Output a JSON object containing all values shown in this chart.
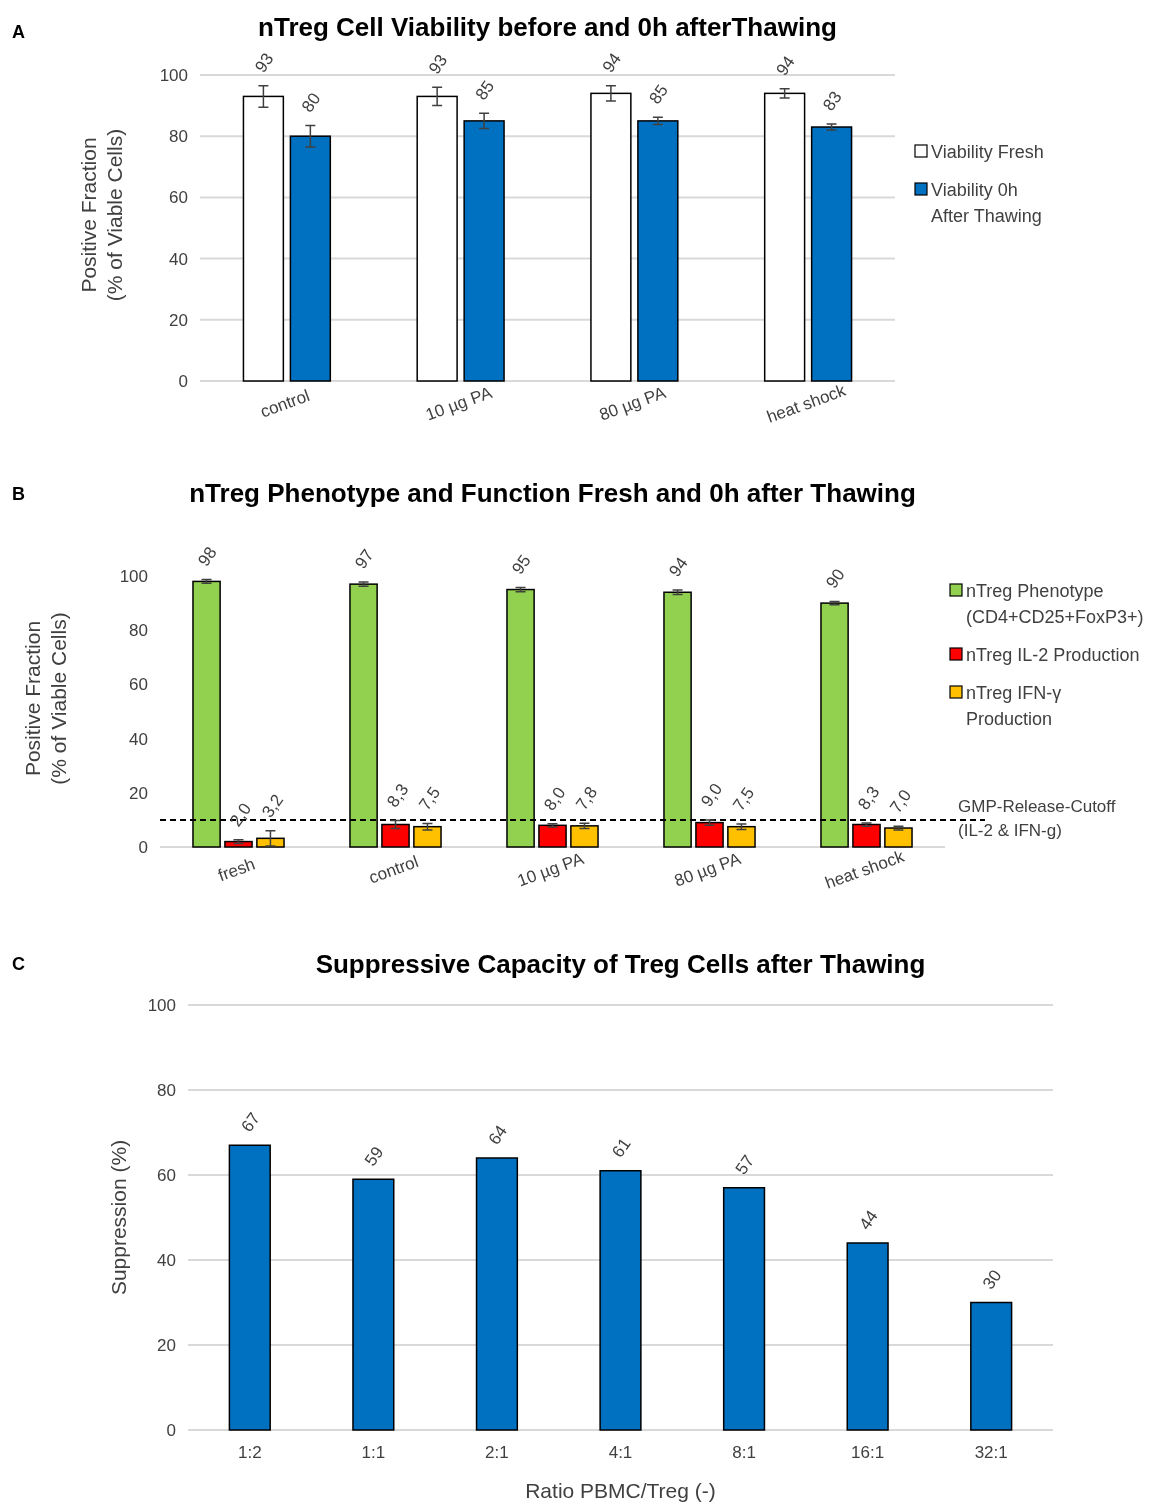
{
  "chart_data": [
    {
      "type": "bar",
      "title": "nTreg Cell Viability before and 0h afterThawing",
      "ylabel": "Positive Fraction\n(% of Viable Cells)",
      "annotations": [
        "A"
      ],
      "categories": [
        "control",
        "10 µg PA",
        "80 µg PA",
        "heat shock"
      ],
      "series": [
        {
          "name": "Viability Fresh",
          "color": "#ffffff",
          "values": [
            93,
            93,
            94,
            94
          ],
          "errors": [
            3.5,
            3,
            2.5,
            1.5
          ]
        },
        {
          "name": "Viability 0h\nAfter Thawing",
          "color": "#0070c0",
          "values": [
            80,
            85,
            85,
            83
          ],
          "errors": [
            3.5,
            2.5,
            1.2,
            1
          ]
        }
      ],
      "ylim": [
        0,
        100
      ],
      "yticks": [
        0,
        20,
        40,
        60,
        80,
        100
      ],
      "grid": "y",
      "legend": "right",
      "data_labels": true
    },
    {
      "type": "bar",
      "title": "nTreg Phenotype and Function Fresh and 0h after Thawing",
      "ylabel": "Positive Fraction\n(% of Viable Cells)",
      "annotations": [
        "B"
      ],
      "categories": [
        "fresh",
        "control",
        "10 µg PA",
        "80 µg PA",
        "heat shock"
      ],
      "series": [
        {
          "name": "nTreg Phenotype\n(CD4+CD25+FoxP3+)",
          "color": "#92d050",
          "values": [
            98,
            97,
            95,
            94,
            90
          ],
          "errors": [
            0.7,
            0.8,
            0.8,
            0.8,
            0.6
          ],
          "value_labels": [
            "98",
            "97",
            "95",
            "94",
            "90"
          ]
        },
        {
          "name": "nTreg IL-2 Production",
          "color": "#ff0000",
          "values": [
            2.0,
            8.3,
            8.0,
            9.0,
            8.3
          ],
          "errors": [
            0.7,
            1.5,
            0.6,
            1,
            0.6
          ],
          "value_labels": [
            "2,0",
            "8,3",
            "8,0",
            "9,0",
            "8,3"
          ]
        },
        {
          "name": "nTreg IFN-γ\nProduction",
          "color": "#ffc000",
          "values": [
            3.2,
            7.5,
            7.8,
            7.5,
            7.0
          ],
          "errors": [
            2.8,
            1.2,
            1,
            1,
            0.7
          ],
          "value_labels": [
            "3,2",
            "7,5",
            "7,8",
            "7,5",
            "7,0"
          ]
        }
      ],
      "ref_lines": [
        {
          "axis": "y",
          "value": 10,
          "label": "GMP-Release-Cutoff\n(IL-2 & IFN-g)",
          "color": "#000000",
          "line_style": "dashed"
        }
      ],
      "ylim": [
        0,
        100
      ],
      "yticks": [
        0,
        20,
        40,
        60,
        80,
        100
      ],
      "legend": "right"
    },
    {
      "type": "bar",
      "title": "Suppressive Capacity of Treg Cells after Thawing",
      "xlabel": "Ratio PBMC/Treg (-)",
      "ylabel": "Suppression (%)",
      "annotations": [
        "C"
      ],
      "categories": [
        "1:2",
        "1:1",
        "2:1",
        "4:1",
        "8:1",
        "16:1",
        "32:1"
      ],
      "series": [
        {
          "color": "#0070c0",
          "values": [
            67,
            59,
            64,
            61,
            57,
            44,
            30
          ]
        }
      ],
      "ylim": [
        0,
        100
      ],
      "yticks": [
        0,
        20,
        40,
        60,
        80,
        100
      ],
      "grid": "y",
      "data_labels": true
    }
  ]
}
